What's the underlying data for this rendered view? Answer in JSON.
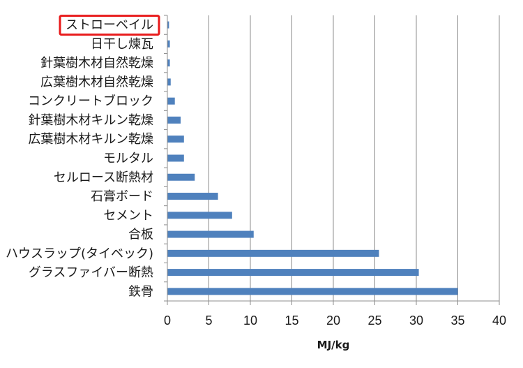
{
  "chart_data": {
    "type": "bar",
    "orientation": "horizontal",
    "categories": [
      "ストローベイル",
      "日干し煉瓦",
      "針葉樹木材自然乾燥",
      "広葉樹木材自然乾燥",
      "コンクリートブロック",
      "針葉樹木材キルン乾燥",
      "広葉樹木材キルン乾燥",
      "モルタル",
      "セルロース断熱材",
      "石膏ボード",
      "セメント",
      "合板",
      "ハウスラップ(タイベック)",
      "グラスファイバー断熱",
      "鉄骨"
    ],
    "values": [
      0.2,
      0.3,
      0.3,
      0.4,
      0.9,
      1.6,
      2.0,
      2.0,
      3.3,
      6.1,
      7.8,
      10.4,
      25.5,
      30.3,
      35.0
    ],
    "xlabel": "MJ/kg",
    "xlim": [
      0,
      40
    ],
    "xticks": [
      0,
      5,
      10,
      15,
      20,
      25,
      30,
      35,
      40
    ],
    "grid": true,
    "legend": "none",
    "bar_color": "#4f81bd",
    "highlighted_category": "ストローベイル",
    "highlight_color": "#e8191a"
  }
}
